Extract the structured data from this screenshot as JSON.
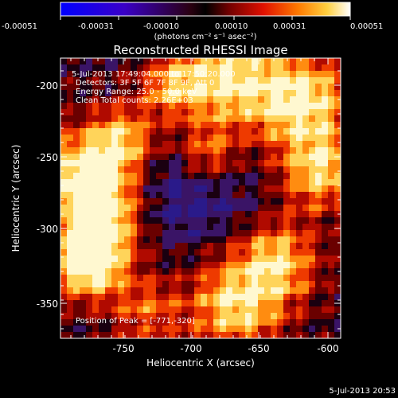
{
  "colorbar": {
    "tick_labels": [
      "-0.00051",
      "-0.00031",
      "-0.00010",
      "0.00010",
      "0.00031",
      "0.00051"
    ],
    "units_label": "(photons cm⁻² s⁻¹ asec⁻²)"
  },
  "plot": {
    "title": "Reconstructed RHESSI Image",
    "xlabel": "Heliocentric X (arcsec)",
    "ylabel": "Heliocentric Y (arcsec)",
    "x_ticks": [
      "-750",
      "-700",
      "-650",
      "-600"
    ],
    "y_ticks": [
      "-200",
      "-250",
      "-300",
      "-350"
    ]
  },
  "annotations": {
    "time_range": "5-Jul-2013 17:49:04.000 to 17:50:20.000",
    "detectors": "Detectors: 3F 5F 6F 7F 8F 9F, Att 0",
    "energy": "Energy Range: 25.0 - 50.0 keV",
    "clean": "Clean    Total counts: 2.26E+03",
    "peak": "Position of Peak = [-771,-320]"
  },
  "footer": {
    "date": "5-Jul-2013 20:53"
  }
}
